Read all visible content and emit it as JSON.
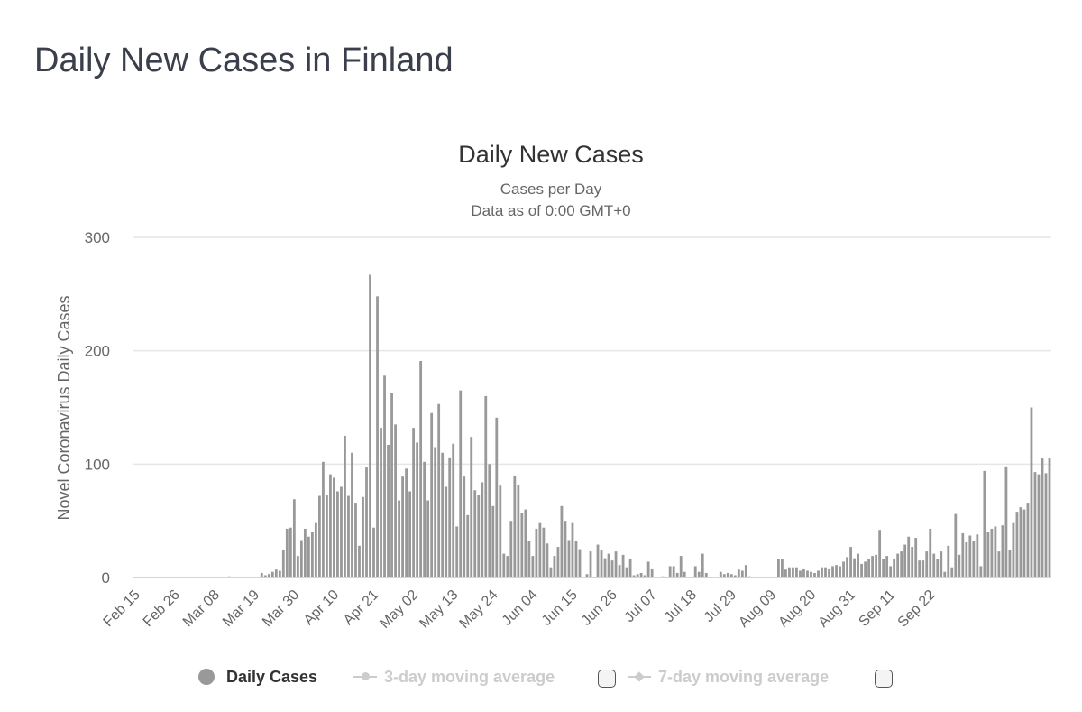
{
  "page_title": "Daily New Cases in Finland",
  "colors": {
    "bar": "#999999",
    "grid": "#e6e6e6",
    "axis": "#ccd6eb",
    "legend_inactive": "#cccccc"
  },
  "legend": {
    "items": [
      {
        "label": "Daily Cases",
        "icon": "circle-marker-icon",
        "active": true
      },
      {
        "label": "3-day moving average",
        "icon": "line-circle-marker-icon",
        "active": false
      },
      {
        "label": "7-day moving average",
        "icon": "line-diamond-marker-icon",
        "active": false
      }
    ]
  },
  "chart_data": {
    "type": "bar",
    "title": "Daily New Cases",
    "subtitle": [
      "Cases per Day",
      "Data as of 0:00 GMT+0"
    ],
    "ylabel": "Novel Coronavirus Daily Cases",
    "xlabel": "",
    "ylim": [
      0,
      300
    ],
    "yticks": [
      0,
      100,
      200,
      300
    ],
    "start_date": "Feb 15",
    "xtick_every_days": 11,
    "xticks": [
      "Feb 15",
      "Feb 26",
      "Mar 08",
      "Mar 19",
      "Mar 30",
      "Apr 10",
      "Apr 21",
      "May 02",
      "May 13",
      "May 24",
      "Jun 04",
      "Jun 15",
      "Jun 26",
      "Jul 07",
      "Jul 18",
      "Jul 29",
      "Aug 09",
      "Aug 20",
      "Aug 31",
      "Sep 11",
      "Sep 22"
    ],
    "series": [
      {
        "name": "Daily Cases",
        "values": [
          0,
          0,
          0,
          0,
          0,
          0,
          0,
          0,
          0,
          0,
          0,
          0,
          0,
          0,
          0,
          0,
          0,
          0,
          0,
          0,
          0,
          0,
          0,
          0,
          0,
          0,
          1,
          0,
          0,
          0,
          0,
          0,
          0,
          0,
          0,
          4,
          2,
          3,
          5,
          7,
          6,
          24,
          43,
          44,
          69,
          19,
          33,
          43,
          36,
          40,
          48,
          72,
          102,
          73,
          91,
          88,
          76,
          80,
          125,
          72,
          110,
          66,
          28,
          71,
          97,
          267,
          44,
          248,
          132,
          178,
          117,
          163,
          135,
          68,
          89,
          96,
          76,
          132,
          119,
          191,
          102,
          68,
          145,
          115,
          153,
          110,
          80,
          106,
          118,
          45,
          165,
          89,
          55,
          124,
          77,
          73,
          84,
          160,
          100,
          63,
          141,
          81,
          21,
          19,
          50,
          90,
          82,
          57,
          60,
          32,
          19,
          43,
          48,
          44,
          30,
          9,
          19,
          27,
          63,
          50,
          33,
          48,
          32,
          25,
          0,
          3,
          23,
          0,
          29,
          24,
          17,
          21,
          15,
          23,
          11,
          20,
          9,
          16,
          2,
          3,
          4,
          2,
          14,
          8,
          0,
          0,
          1,
          0,
          10,
          10,
          4,
          19,
          5,
          0,
          0,
          10,
          5,
          21,
          4,
          0,
          0,
          0,
          5,
          3,
          4,
          3,
          2,
          7,
          6,
          11,
          1,
          0,
          0,
          0,
          0,
          0,
          0,
          0,
          16,
          16,
          7,
          9,
          9,
          9,
          6,
          8,
          6,
          5,
          4,
          6,
          9,
          9,
          8,
          10,
          11,
          10,
          14,
          18,
          27,
          17,
          21,
          12,
          14,
          16,
          19,
          20,
          42,
          16,
          19,
          10,
          16,
          21,
          23,
          29,
          36,
          27,
          35,
          15,
          15,
          23,
          43,
          21,
          16,
          23,
          5,
          28,
          9,
          56,
          20,
          39,
          31,
          37,
          32,
          38,
          10,
          94,
          40,
          43,
          45,
          23,
          46,
          98,
          24,
          48,
          58,
          62,
          60,
          66,
          150,
          93,
          91,
          105,
          92,
          105
        ]
      }
    ]
  }
}
